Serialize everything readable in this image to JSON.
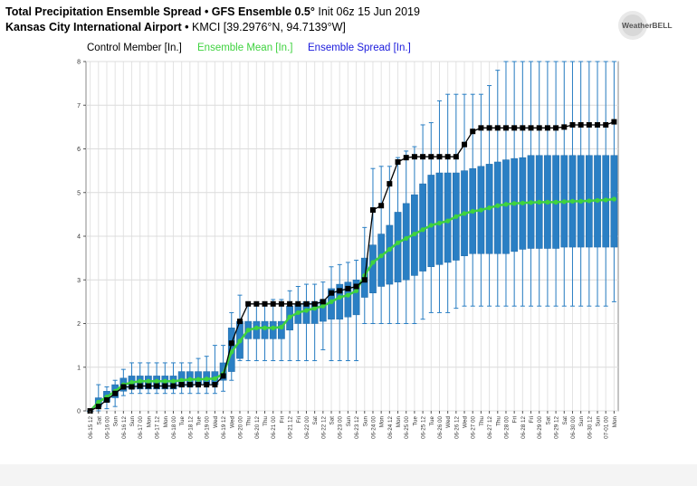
{
  "header": {
    "title_main": "Total Precipitation Ensemble Spread • GFS Ensemble 0.5°",
    "title_init": "Init 06z 15 Jun 2019",
    "location_name": "Kansas City International Airport •",
    "location_detail": "KMCI [39.2976°N, 94.7139°W]",
    "logo_text": "WeatherBELL"
  },
  "legend": {
    "control": "Control Member [In.]",
    "mean": "Ensemble Mean [In.]",
    "spread": "Ensemble Spread [In.]"
  },
  "colors": {
    "control": "#000000",
    "mean": "#3fd23f",
    "spread": "#2a7fc4",
    "spread_legend": "#1a1adc"
  },
  "chart_data": {
    "type": "boxplot",
    "ylim": [
      0,
      8
    ],
    "yticks": [
      0,
      1,
      2,
      3,
      4,
      5,
      6,
      7,
      8
    ],
    "grid": true,
    "legend_position": "top",
    "x_labels": [
      "06-15 12",
      "Sat",
      "06-16 00",
      "Sun",
      "06-16 12",
      "Sun",
      "06-17 00",
      "Mon",
      "06-17 12",
      "Mon",
      "06-18 00",
      "Tue",
      "06-18 12",
      "Tue",
      "06-19 00",
      "Wed",
      "06-19 12",
      "Wed",
      "06-20 00",
      "Thu",
      "06-20 12",
      "Thu",
      "06-21 00",
      "Fri",
      "06-21 12",
      "Fri",
      "06-22 00",
      "Sat",
      "06-22 12",
      "Sat",
      "06-23 00",
      "Sun",
      "06-23 12",
      "Sun",
      "06-24 00",
      "Mon",
      "06-24 12",
      "Mon",
      "06-25 00",
      "Tue",
      "06-25 12",
      "Tue",
      "06-26 00",
      "Wed",
      "06-26 12",
      "Wed",
      "06-27 00",
      "Thu",
      "06-27 12",
      "Thu",
      "06-28 00",
      "Fri",
      "06-28 12",
      "Fri",
      "06-29 00",
      "Sat",
      "06-29 12",
      "Sat",
      "06-30 00",
      "Sun",
      "06-30 12",
      "Sun",
      "07-01 00",
      "Mon"
    ],
    "control": [
      0,
      0.1,
      0.25,
      0.4,
      0.55,
      0.55,
      0.57,
      0.57,
      0.57,
      0.57,
      0.57,
      0.6,
      0.6,
      0.6,
      0.6,
      0.6,
      0.8,
      1.55,
      2.05,
      2.45,
      2.45,
      2.45,
      2.45,
      2.45,
      2.45,
      2.45,
      2.45,
      2.45,
      2.5,
      2.7,
      2.75,
      2.8,
      2.85,
      3.0,
      4.6,
      4.7,
      5.2,
      5.7,
      5.8,
      5.82,
      5.82,
      5.82,
      5.82,
      5.82,
      5.82,
      6.1,
      6.4,
      6.48,
      6.48,
      6.48,
      6.48,
      6.48,
      6.48,
      6.48,
      6.48,
      6.48,
      6.48,
      6.5,
      6.55,
      6.55,
      6.55,
      6.55,
      6.55,
      6.62
    ],
    "mean": [
      0,
      0.2,
      0.32,
      0.45,
      0.6,
      0.65,
      0.68,
      0.68,
      0.68,
      0.68,
      0.68,
      0.7,
      0.72,
      0.72,
      0.73,
      0.74,
      0.85,
      1.35,
      1.6,
      1.85,
      1.9,
      1.9,
      1.9,
      1.92,
      2.15,
      2.25,
      2.3,
      2.35,
      2.4,
      2.5,
      2.6,
      2.65,
      2.75,
      3.1,
      3.4,
      3.55,
      3.7,
      3.85,
      3.95,
      4.05,
      4.15,
      4.25,
      4.3,
      4.35,
      4.45,
      4.52,
      4.57,
      4.6,
      4.65,
      4.7,
      4.73,
      4.75,
      4.76,
      4.77,
      4.78,
      4.78,
      4.78,
      4.79,
      4.8,
      4.8,
      4.81,
      4.82,
      4.83,
      4.85
    ],
    "q1": [
      0,
      0.1,
      0.2,
      0.3,
      0.45,
      0.5,
      0.5,
      0.5,
      0.5,
      0.5,
      0.5,
      0.55,
      0.55,
      0.6,
      0.6,
      0.6,
      0.7,
      0.9,
      1.2,
      1.65,
      1.65,
      1.65,
      1.65,
      1.65,
      1.85,
      2.0,
      2.0,
      2.0,
      2.05,
      2.1,
      2.1,
      2.15,
      2.2,
      2.6,
      2.7,
      2.85,
      2.9,
      2.95,
      3.0,
      3.1,
      3.2,
      3.3,
      3.35,
      3.4,
      3.45,
      3.55,
      3.6,
      3.6,
      3.6,
      3.6,
      3.6,
      3.65,
      3.7,
      3.72,
      3.72,
      3.72,
      3.72,
      3.75,
      3.75,
      3.75,
      3.75,
      3.75,
      3.75,
      3.75
    ],
    "q3": [
      0,
      0.3,
      0.45,
      0.6,
      0.75,
      0.8,
      0.8,
      0.8,
      0.8,
      0.8,
      0.8,
      0.9,
      0.9,
      0.9,
      0.9,
      0.9,
      1.1,
      1.9,
      2.05,
      2.05,
      2.05,
      2.05,
      2.05,
      2.05,
      2.4,
      2.45,
      2.5,
      2.5,
      2.55,
      2.8,
      2.9,
      2.95,
      3.0,
      3.5,
      3.8,
      4.05,
      4.25,
      4.55,
      4.75,
      4.95,
      5.2,
      5.4,
      5.45,
      5.45,
      5.45,
      5.5,
      5.55,
      5.6,
      5.65,
      5.7,
      5.75,
      5.78,
      5.8,
      5.85,
      5.85,
      5.85,
      5.85,
      5.85,
      5.85,
      5.85,
      5.85,
      5.85,
      5.85,
      5.85
    ],
    "min": [
      0,
      0,
      0.05,
      0.1,
      0.35,
      0.4,
      0.4,
      0.4,
      0.4,
      0.4,
      0.4,
      0.4,
      0.4,
      0.4,
      0.4,
      0.4,
      0.45,
      0.7,
      1.15,
      1.15,
      1.15,
      1.15,
      1.15,
      1.15,
      1.15,
      1.15,
      1.15,
      1.15,
      1.4,
      1.15,
      1.15,
      1.15,
      1.15,
      2.0,
      2.0,
      2.0,
      2.0,
      2.0,
      2.0,
      2.0,
      2.1,
      2.25,
      2.25,
      2.25,
      2.35,
      2.4,
      2.4,
      2.4,
      2.4,
      2.4,
      2.4,
      2.4,
      2.4,
      2.4,
      2.4,
      2.4,
      2.4,
      2.4,
      2.4,
      2.4,
      2.4,
      2.4,
      2.4,
      2.5
    ],
    "max": [
      0,
      0.6,
      0.55,
      0.7,
      0.95,
      1.1,
      1.1,
      1.1,
      1.1,
      1.1,
      1.1,
      1.1,
      1.1,
      1.2,
      1.25,
      1.5,
      1.5,
      2.25,
      2.65,
      2.45,
      2.45,
      2.45,
      2.55,
      2.55,
      2.75,
      2.85,
      2.9,
      2.9,
      2.95,
      3.3,
      3.35,
      3.4,
      3.45,
      4.2,
      5.55,
      5.6,
      5.6,
      5.8,
      5.95,
      6.05,
      6.55,
      6.6,
      7.1,
      7.25,
      7.25,
      7.25,
      7.25,
      7.25,
      7.45,
      7.8,
      8.0,
      8.0,
      8.0,
      8.0,
      8.0,
      8.0,
      8.0,
      8.0,
      8.0,
      8.0,
      8.0,
      8.0,
      8.0,
      8.0
    ]
  }
}
